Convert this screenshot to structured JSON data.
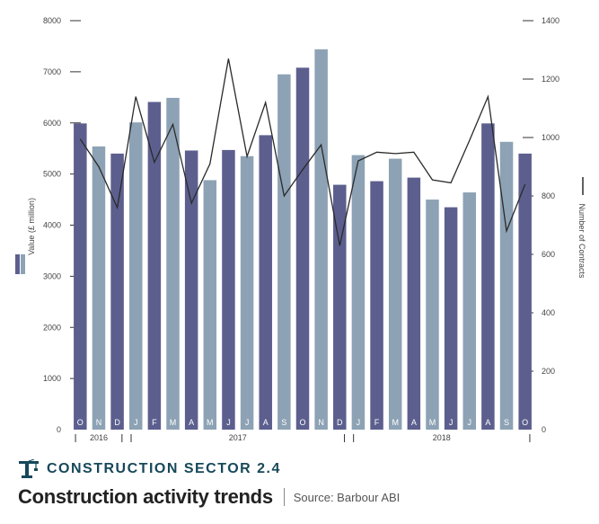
{
  "chart_data": {
    "type": "bar+line",
    "title": "Construction activity trends",
    "section": "CONSTRUCTION SECTOR 2.4",
    "source": "Source: Barbour ABI",
    "ylabel_left": "Value (£ million)",
    "ylabel_right": "Number of Contracts",
    "ylim_left": [
      0,
      8000
    ],
    "ylim_right": [
      0,
      1400
    ],
    "yticks_left": [
      "0",
      "1000",
      "2000",
      "3000",
      "4000",
      "5000",
      "6000",
      "7000",
      "8000"
    ],
    "yticks_right": [
      "0",
      "200",
      "400",
      "600",
      "800",
      "1000",
      "1200",
      "1400"
    ],
    "categories": [
      "O",
      "N",
      "D",
      "J",
      "F",
      "M",
      "A",
      "M",
      "J",
      "J",
      "A",
      "S",
      "O",
      "N",
      "D",
      "J",
      "F",
      "M",
      "A",
      "M",
      "J",
      "J",
      "A",
      "S",
      "O"
    ],
    "years": [
      {
        "label": "2016",
        "start": 0,
        "end": 2
      },
      {
        "label": "2017",
        "start": 3,
        "end": 14
      },
      {
        "label": "2018",
        "start": 15,
        "end": 24
      }
    ],
    "bar_colors": [
      "#5c5f8e",
      "#8da2b4"
    ],
    "bar_values": [
      5990,
      5540,
      5400,
      6010,
      6410,
      6490,
      5460,
      4880,
      5470,
      5350,
      5760,
      6950,
      7080,
      7440,
      4790,
      5370,
      4860,
      5300,
      4930,
      4500,
      4350,
      4640,
      5990,
      5630,
      5400
    ],
    "bar_tones": [
      0,
      1,
      0,
      1,
      0,
      1,
      0,
      1,
      0,
      1,
      0,
      1,
      0,
      1,
      0,
      1,
      0,
      1,
      0,
      1,
      0,
      1,
      0,
      1,
      0
    ],
    "line_color": "#2a2a2a",
    "line_values": [
      995,
      900,
      760,
      1140,
      915,
      1045,
      775,
      910,
      1270,
      935,
      1120,
      800,
      890,
      975,
      630,
      920,
      950,
      945,
      950,
      855,
      845,
      990,
      1140,
      680,
      840
    ]
  },
  "footer": {
    "section_title": "CONSTRUCTION SECTOR 2.4",
    "main_title": "Construction activity trends",
    "source": "Source: Barbour ABI"
  },
  "icons": {
    "section_icon": "crane-icon",
    "legend_icon": "two-tone-bar-legend-icon"
  }
}
